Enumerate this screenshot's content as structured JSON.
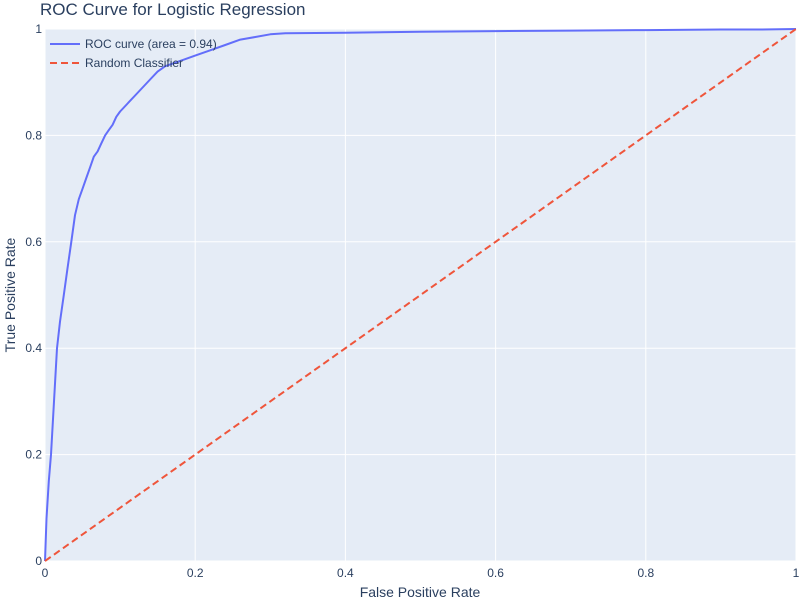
{
  "chart_data": {
    "type": "line",
    "title": "ROC Curve for Logistic Regression",
    "xlabel": "False Positive Rate",
    "ylabel": "True Positive Rate",
    "xlim": [
      0,
      1
    ],
    "ylim": [
      0,
      1
    ],
    "x_ticks": [
      "0",
      "0.2",
      "0.4",
      "0.6",
      "0.8",
      "1"
    ],
    "y_ticks": [
      "0",
      "0.2",
      "0.4",
      "0.6",
      "0.8",
      "1"
    ],
    "grid": true,
    "legend_position": "top-left",
    "series": [
      {
        "name": "ROC curve (area = 0.94)",
        "color": "#636efa",
        "dash": "solid",
        "x": [
          0,
          0.002,
          0.005,
          0.008,
          0.012,
          0.016,
          0.02,
          0.025,
          0.03,
          0.035,
          0.04,
          0.045,
          0.05,
          0.055,
          0.06,
          0.065,
          0.07,
          0.075,
          0.08,
          0.085,
          0.09,
          0.095,
          0.1,
          0.11,
          0.12,
          0.13,
          0.14,
          0.15,
          0.16,
          0.18,
          0.2,
          0.22,
          0.24,
          0.26,
          0.28,
          0.3,
          0.32,
          0.4,
          0.5,
          0.6,
          0.7,
          0.8,
          0.9,
          0.95,
          1
        ],
        "y": [
          0,
          0.08,
          0.15,
          0.2,
          0.3,
          0.4,
          0.45,
          0.5,
          0.55,
          0.6,
          0.65,
          0.68,
          0.7,
          0.72,
          0.74,
          0.76,
          0.77,
          0.785,
          0.8,
          0.81,
          0.82,
          0.835,
          0.845,
          0.86,
          0.875,
          0.89,
          0.905,
          0.92,
          0.93,
          0.94,
          0.95,
          0.96,
          0.97,
          0.98,
          0.985,
          0.99,
          0.992,
          0.993,
          0.995,
          0.996,
          0.997,
          0.998,
          0.999,
          0.999,
          1
        ]
      },
      {
        "name": "Random Classifier",
        "color": "#ef553b",
        "dash": "dashed",
        "x": [
          0,
          1
        ],
        "y": [
          0,
          1
        ]
      }
    ]
  },
  "colors": {
    "plot_background": "#e5ecf6",
    "grid": "#ffffff",
    "text": "#2a3f5f"
  }
}
